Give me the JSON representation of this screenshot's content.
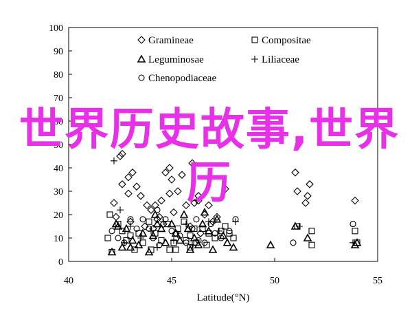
{
  "overlay_text": "世界历史故事,世界历",
  "chart_data": {
    "type": "scatter",
    "title": "",
    "xlabel": "Latitude(°N)",
    "ylabel": "",
    "xlim": [
      40,
      55
    ],
    "ylim": [
      0,
      100
    ],
    "x_ticks": [
      "40",
      "45",
      "50",
      "55"
    ],
    "y_ticks": [
      "0",
      "10",
      "20",
      "30",
      "40",
      "50",
      "60",
      "70",
      "80",
      "90",
      "100"
    ],
    "grid": false,
    "legend_position": "top-center",
    "series": [
      {
        "name": "Gramineae",
        "marker": "diamond-open",
        "points": [
          [
            42.2,
            25
          ],
          [
            42.3,
            19
          ],
          [
            42.6,
            33
          ],
          [
            42.9,
            36
          ],
          [
            43.1,
            38
          ],
          [
            43.3,
            32
          ],
          [
            42.9,
            29
          ],
          [
            43.5,
            28
          ],
          [
            43.8,
            24
          ],
          [
            42.5,
            45
          ],
          [
            43.0,
            17
          ],
          [
            43.7,
            15
          ],
          [
            44.0,
            22
          ],
          [
            44.2,
            24
          ],
          [
            44.5,
            26
          ],
          [
            44.7,
            38
          ],
          [
            44.9,
            40
          ],
          [
            45.0,
            35
          ],
          [
            45.3,
            30
          ],
          [
            45.5,
            37
          ],
          [
            44.9,
            29
          ],
          [
            45.1,
            21
          ],
          [
            44.3,
            18
          ],
          [
            44.1,
            14
          ],
          [
            45.7,
            24
          ],
          [
            46.1,
            25
          ],
          [
            46.3,
            28
          ],
          [
            46.6,
            20
          ],
          [
            45.9,
            15
          ],
          [
            46.4,
            12
          ],
          [
            47.0,
            17
          ],
          [
            47.2,
            19
          ],
          [
            46.0,
            42
          ],
          [
            46.8,
            24
          ],
          [
            47.6,
            31
          ],
          [
            46.3,
            26
          ],
          [
            45.2,
            12
          ],
          [
            44.6,
            16
          ],
          [
            51.0,
            38
          ],
          [
            51.1,
            30
          ],
          [
            51.7,
            33
          ],
          [
            51.6,
            28
          ],
          [
            51.5,
            25
          ],
          [
            53.9,
            26
          ],
          [
            42.6,
            46
          ],
          [
            44.4,
            19
          ]
        ]
      },
      {
        "name": "Compositae",
        "marker": "square-open",
        "points": [
          [
            41.9,
            10
          ],
          [
            42.0,
            20
          ],
          [
            42.4,
            16
          ],
          [
            42.6,
            13
          ],
          [
            42.8,
            9
          ],
          [
            43.0,
            11
          ],
          [
            43.4,
            12
          ],
          [
            43.6,
            8
          ],
          [
            43.9,
            17
          ],
          [
            44.2,
            12
          ],
          [
            44.5,
            9
          ],
          [
            44.8,
            16
          ],
          [
            45.1,
            8
          ],
          [
            45.3,
            14
          ],
          [
            45.6,
            17
          ],
          [
            45.9,
            11
          ],
          [
            46.2,
            8
          ],
          [
            46.5,
            14
          ],
          [
            46.8,
            12
          ],
          [
            47.1,
            10
          ],
          [
            47.4,
            13
          ],
          [
            47.8,
            12
          ],
          [
            48.0,
            10
          ],
          [
            44.9,
            5
          ],
          [
            45.7,
            9
          ],
          [
            46.1,
            14
          ],
          [
            43.2,
            5
          ],
          [
            44.0,
            5
          ],
          [
            42.1,
            4
          ],
          [
            45.2,
            5
          ],
          [
            46.7,
            7
          ],
          [
            51.1,
            15
          ],
          [
            51.8,
            13
          ],
          [
            51.8,
            7
          ],
          [
            53.9,
            13
          ],
          [
            54.0,
            8
          ],
          [
            47.6,
            15
          ],
          [
            45.9,
            6
          ]
        ]
      },
      {
        "name": "Leguminosae",
        "marker": "triangle-open",
        "points": [
          [
            42.1,
            4
          ],
          [
            42.3,
            16
          ],
          [
            42.6,
            6
          ],
          [
            42.8,
            14
          ],
          [
            43.1,
            9
          ],
          [
            43.4,
            7
          ],
          [
            43.6,
            12
          ],
          [
            43.9,
            4
          ],
          [
            44.1,
            11
          ],
          [
            44.3,
            16
          ],
          [
            44.5,
            14
          ],
          [
            44.7,
            8
          ],
          [
            45.0,
            16
          ],
          [
            45.2,
            12
          ],
          [
            45.4,
            9
          ],
          [
            45.6,
            20
          ],
          [
            45.8,
            14
          ],
          [
            46.1,
            10
          ],
          [
            46.3,
            7
          ],
          [
            46.5,
            16
          ],
          [
            46.8,
            13
          ],
          [
            47.0,
            5
          ],
          [
            47.2,
            18
          ],
          [
            47.5,
            11
          ],
          [
            47.7,
            8
          ],
          [
            48.0,
            6
          ],
          [
            44.2,
            20
          ],
          [
            45.9,
            5
          ],
          [
            46.6,
            21
          ],
          [
            51.0,
            15
          ],
          [
            51.6,
            10
          ],
          [
            49.8,
            7
          ],
          [
            53.9,
            7
          ],
          [
            54.0,
            8
          ],
          [
            42.4,
            15
          ],
          [
            43.0,
            6
          ]
        ]
      },
      {
        "name": "Liliaceae",
        "marker": "plus",
        "points": [
          [
            42.2,
            43
          ],
          [
            42.5,
            22
          ],
          [
            43.0,
            15
          ],
          [
            43.5,
            10
          ],
          [
            44.0,
            13
          ],
          [
            44.6,
            17
          ],
          [
            45.1,
            9
          ],
          [
            45.7,
            16
          ],
          [
            46.2,
            26
          ],
          [
            46.8,
            17
          ],
          [
            47.3,
            13
          ],
          [
            46.0,
            7
          ],
          [
            44.3,
            6
          ],
          [
            51.2,
            15
          ],
          [
            53.8,
            8
          ],
          [
            42.7,
            8
          ],
          [
            48.1,
            17
          ]
        ]
      },
      {
        "name": "Chenopodiaceae",
        "marker": "circle-open",
        "points": [
          [
            42.1,
            13
          ],
          [
            42.4,
            10
          ],
          [
            42.7,
            8
          ],
          [
            43.0,
            18
          ],
          [
            43.3,
            14
          ],
          [
            43.6,
            18
          ],
          [
            43.9,
            14
          ],
          [
            44.1,
            10
          ],
          [
            44.4,
            7
          ],
          [
            44.7,
            18
          ],
          [
            45.0,
            13
          ],
          [
            45.4,
            11
          ],
          [
            45.7,
            8
          ],
          [
            46.0,
            14
          ],
          [
            46.3,
            9
          ],
          [
            46.6,
            8
          ],
          [
            46.9,
            16
          ],
          [
            47.1,
            12
          ],
          [
            47.4,
            10
          ],
          [
            47.8,
            13
          ],
          [
            48.1,
            18
          ],
          [
            44.3,
            22
          ],
          [
            46.2,
            18
          ],
          [
            50.9,
            8
          ],
          [
            53.8,
            16
          ]
        ]
      }
    ]
  }
}
